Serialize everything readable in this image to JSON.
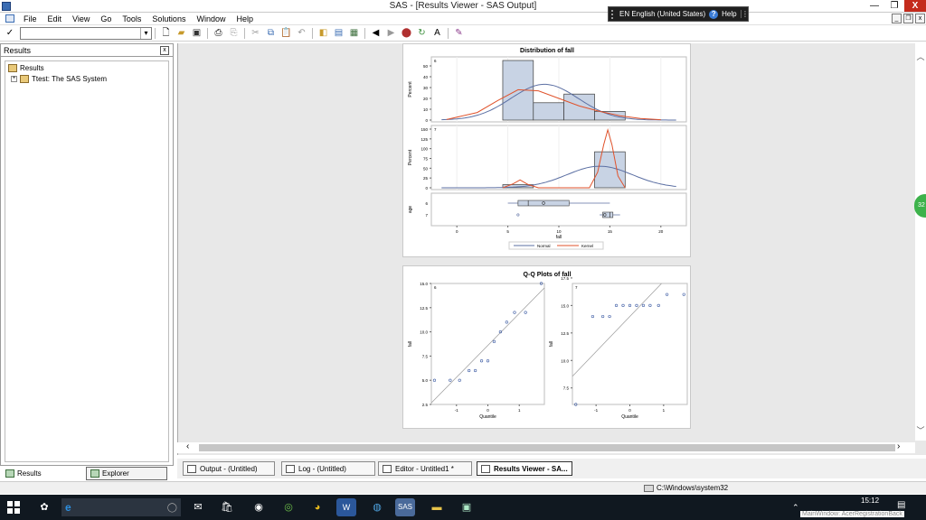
{
  "window": {
    "title": "SAS - [Results Viewer - SAS Output]",
    "min_label": "—",
    "max_label": "❐",
    "close_label": "X"
  },
  "langbar": {
    "language": "EN English (United States)",
    "help_label": "Help"
  },
  "menu": {
    "items": [
      "File",
      "Edit",
      "View",
      "Go",
      "Tools",
      "Solutions",
      "Window",
      "Help"
    ]
  },
  "toolbar": {
    "check": "✓",
    "command_value": ""
  },
  "results_pane": {
    "title": "Results",
    "close_label": "x",
    "tree": [
      {
        "label": "Results"
      },
      {
        "label": "Ttest:  The SAS System"
      }
    ]
  },
  "pane_tabs": {
    "results": "Results",
    "explorer": "Explorer"
  },
  "window_tabs": [
    {
      "label": "Output - (Untitled)"
    },
    {
      "label": "Log - (Untitled)"
    },
    {
      "label": "Editor - Untitled1 *"
    },
    {
      "label": "Results Viewer - SA..."
    }
  ],
  "status": {
    "path": "C:\\Windows\\system32"
  },
  "taskbar": {
    "search_text": "",
    "time": "15:12",
    "watermark": "MainWindow: AcerRegistrationBack"
  },
  "side_bubble": "32",
  "colors": {
    "normal": "#5b6fa3",
    "kernel": "#e0522b",
    "bar_fill": "#c8d3e4",
    "bar_stroke": "#3b3b3b"
  },
  "chart_data": [
    {
      "type": "bar",
      "title": "Distribution of fall",
      "xlabel": "fall",
      "ylabel": "Percent",
      "xlim": [
        -2.5,
        22.5
      ],
      "x_ticks": [
        0,
        5,
        10,
        15,
        20
      ],
      "legend": [
        "Normal",
        "Kernel"
      ],
      "legend_position": "bottom",
      "panels": [
        {
          "label": "6",
          "ylim": [
            0,
            55
          ],
          "y_ticks": [
            0,
            10,
            20,
            30,
            40,
            50
          ],
          "bins": [
            {
              "x0": 4.5,
              "x1": 7.5,
              "value": 55
            },
            {
              "x0": 7.5,
              "x1": 10.5,
              "value": 16
            },
            {
              "x0": 10.5,
              "x1": 13.5,
              "value": 24
            },
            {
              "x0": 13.5,
              "x1": 16.5,
              "value": 8
            }
          ],
          "normal_curve": {
            "mean": 8.6,
            "sd": 3.3
          },
          "kernel_curve": [
            [
              -1,
              0.5
            ],
            [
              2,
              7
            ],
            [
              4,
              18
            ],
            [
              6,
              28
            ],
            [
              8,
              27
            ],
            [
              10,
              20
            ],
            [
              12,
              13
            ],
            [
              14,
              8
            ],
            [
              16,
              4
            ],
            [
              18,
              1.5
            ],
            [
              20,
              0.3
            ]
          ]
        },
        {
          "label": "7",
          "ylim": [
            0,
            150
          ],
          "y_ticks": [
            0,
            25,
            50,
            75,
            100,
            125,
            150
          ],
          "bins": [
            {
              "x0": 4.5,
              "x1": 7.5,
              "value": 8
            },
            {
              "x0": 13.5,
              "x1": 16.5,
              "value": 92
            }
          ],
          "normal_curve": {
            "mean": 14,
            "sd": 3.2
          },
          "kernel_curve": [
            [
              4.5,
              0
            ],
            [
              5.5,
              10
            ],
            [
              6.2,
              20
            ],
            [
              7,
              8
            ],
            [
              8,
              0
            ],
            [
              13,
              0
            ],
            [
              13.8,
              40
            ],
            [
              14.4,
              110
            ],
            [
              14.8,
              148
            ],
            [
              15.2,
              110
            ],
            [
              15.8,
              30
            ],
            [
              16.5,
              0
            ]
          ]
        }
      ],
      "boxplots": [
        {
          "label": "6",
          "min": 5,
          "q1": 6,
          "median": 7,
          "mean": 8.5,
          "q3": 11,
          "max": 15,
          "outliers": []
        },
        {
          "label": "7",
          "min": 14,
          "q1": 14.3,
          "median": 15,
          "mean": 14.5,
          "q3": 15.3,
          "max": 16,
          "outliers": [
            6
          ]
        }
      ]
    },
    {
      "type": "scatter",
      "title": "Q-Q Plots of fall",
      "xlabel": "Quantile",
      "ylabel": "fall",
      "panels": [
        {
          "label": "6",
          "xlim": [
            -1.8,
            1.8
          ],
          "ylim": [
            2.5,
            15
          ],
          "x_ticks": [
            -1,
            0,
            1
          ],
          "y_ticks": [
            2.5,
            5.0,
            7.5,
            10.0,
            12.5,
            15.0
          ],
          "points": [
            [
              -1.7,
              5
            ],
            [
              -1.2,
              5
            ],
            [
              -0.9,
              5
            ],
            [
              -0.6,
              6
            ],
            [
              -0.4,
              6
            ],
            [
              -0.2,
              7
            ],
            [
              0,
              7
            ],
            [
              0.2,
              9
            ],
            [
              0.4,
              10
            ],
            [
              0.6,
              11
            ],
            [
              0.85,
              12
            ],
            [
              1.2,
              12
            ],
            [
              1.7,
              15
            ]
          ],
          "ref_line": {
            "intercept": 8.6,
            "slope": 3.3
          }
        },
        {
          "label": "7",
          "xlim": [
            -1.7,
            1.7
          ],
          "ylim": [
            6,
            17
          ],
          "x_ticks": [
            -1,
            0,
            1
          ],
          "y_ticks": [
            7.5,
            10.0,
            12.5,
            15.0,
            17.5
          ],
          "points": [
            [
              -1.6,
              6
            ],
            [
              -1.1,
              14
            ],
            [
              -0.8,
              14
            ],
            [
              -0.6,
              14
            ],
            [
              -0.4,
              15
            ],
            [
              -0.2,
              15
            ],
            [
              0,
              15
            ],
            [
              0.2,
              15
            ],
            [
              0.4,
              15
            ],
            [
              0.6,
              15
            ],
            [
              0.85,
              15
            ],
            [
              1.1,
              16
            ],
            [
              1.6,
              16
            ]
          ],
          "ref_line": {
            "intercept": 14,
            "slope": 3.2
          }
        }
      ]
    }
  ]
}
